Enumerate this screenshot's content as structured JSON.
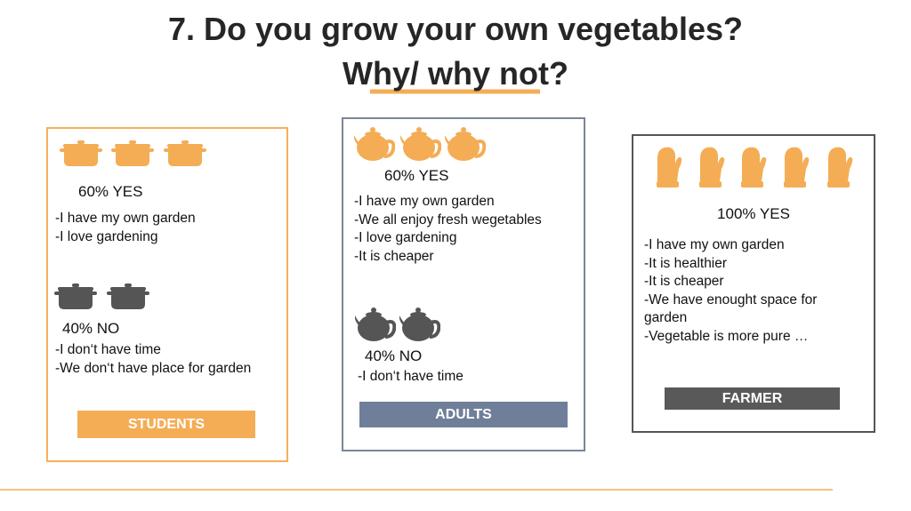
{
  "title": {
    "line1": "7. Do you grow your own vegetables?",
    "line2": "Why/ why not?"
  },
  "panels": [
    {
      "label": "STUDENTS",
      "yes": "60% YES",
      "yes_reasons": [
        "-I have my own garden",
        "-I love gardening"
      ],
      "no": "40% NO",
      "no_reasons": [
        "-I don‘t have time",
        "-We don‘t have place for garden"
      ]
    },
    {
      "label": "ADULTS",
      "yes": "60% YES",
      "yes_reasons": [
        "-I have my own garden",
        "-We all enjoy fresh wegetables",
        "-I love gardening",
        "-It is cheaper"
      ],
      "no": "40% NO",
      "no_reasons": [
        "-I don‘t have time"
      ]
    },
    {
      "label": "FARMER",
      "yes": "100% YES",
      "yes_reasons": [
        "-I have my own garden",
        "-It is healthier",
        "-It is cheaper",
        "-We have enought space for garden",
        "-Vegetable is more pure …"
      ]
    }
  ]
}
